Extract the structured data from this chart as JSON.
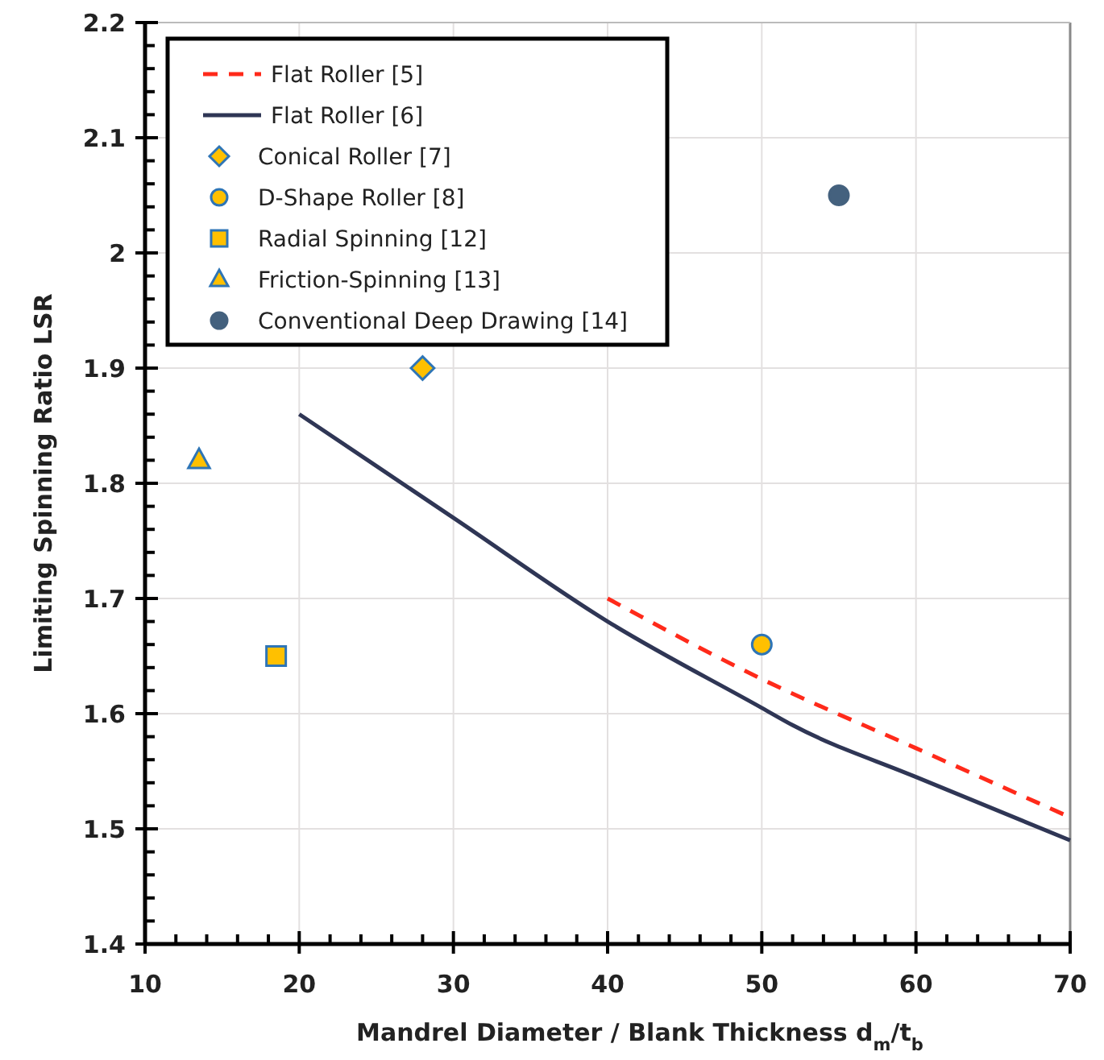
{
  "chart_data": {
    "type": "line",
    "xlabel": "Mandrel Diameter / Blank Thickness    d$_{m}$/t$_{b}$",
    "ylabel": "Limiting Spinning Ratio   LSR",
    "xlim": [
      10,
      70
    ],
    "ylim": [
      1.4,
      2.2
    ],
    "xticks": [
      10,
      {
        "value": 12,
        "label": null
      },
      {
        "value": 14,
        "label": null
      },
      {
        "value": 16,
        "label": null
      },
      {
        "value": 18,
        "label": null
      },
      20,
      {
        "value": 22,
        "label": null
      },
      {
        "value": 24,
        "label": null
      },
      {
        "value": 26,
        "label": null
      },
      {
        "value": 28,
        "label": null
      },
      30,
      {
        "value": 32,
        "label": null
      },
      {
        "value": 34,
        "label": null
      },
      {
        "value": 36,
        "label": null
      },
      {
        "value": 38,
        "label": null
      },
      40,
      {
        "value": 42,
        "label": null
      },
      {
        "value": 44,
        "label": null
      },
      {
        "value": 46,
        "label": null
      },
      {
        "value": 48,
        "label": null
      },
      50,
      {
        "value": 52,
        "label": null
      },
      {
        "value": 54,
        "label": null
      },
      {
        "value": 56,
        "label": null
      },
      {
        "value": 58,
        "label": null
      },
      60,
      {
        "value": 62,
        "label": null
      },
      {
        "value": 64,
        "label": null
      },
      {
        "value": 66,
        "label": null
      },
      {
        "value": 68,
        "label": null
      },
      70
    ],
    "yticks": [
      1.4,
      {
        "value": 1.42,
        "label": null
      },
      {
        "value": 1.44,
        "label": null
      },
      {
        "value": 1.46,
        "label": null
      },
      {
        "value": 1.48,
        "label": null
      },
      1.5,
      {
        "value": 1.52,
        "label": null
      },
      {
        "value": 1.54,
        "label": null
      },
      {
        "value": 1.56,
        "label": null
      },
      {
        "value": 1.58,
        "label": null
      },
      1.6,
      {
        "value": 1.62,
        "label": null
      },
      {
        "value": 1.64,
        "label": null
      },
      {
        "value": 1.66,
        "label": null
      },
      {
        "value": 1.68,
        "label": null
      },
      1.7,
      {
        "value": 1.72,
        "label": null
      },
      {
        "value": 1.74,
        "label": null
      },
      {
        "value": 1.76,
        "label": null
      },
      {
        "value": 1.78,
        "label": null
      },
      1.8,
      {
        "value": 1.82,
        "label": null
      },
      {
        "value": 1.84,
        "label": null
      },
      {
        "value": 1.86,
        "label": null
      },
      {
        "value": 1.88,
        "label": null
      },
      1.9,
      {
        "value": 1.92,
        "label": null
      },
      {
        "value": 1.94,
        "label": null
      },
      {
        "value": 1.96,
        "label": null
      },
      {
        "value": 1.98,
        "label": null
      },
      2,
      {
        "value": 2.02,
        "label": null
      },
      {
        "value": 2.04,
        "label": null
      },
      {
        "value": 2.06,
        "label": null
      },
      {
        "value": 2.08,
        "label": null
      },
      2.1,
      {
        "value": 2.12,
        "label": null
      },
      {
        "value": 2.14,
        "label": null
      },
      {
        "value": 2.16,
        "label": null
      },
      {
        "value": 2.18,
        "label": null
      },
      2.2
    ],
    "grid": true,
    "legend": "top left",
    "series": [
      {
        "name": "Flat Roller  [5]",
        "line_style": "dashed",
        "marker": "none",
        "color": "#ff2a1a",
        "x": [
          40,
          50,
          60,
          70
        ],
        "values": [
          1.7,
          1.63,
          1.57,
          1.51
        ]
      },
      {
        "name": "Flat Roller  [6]",
        "line_style": "solid",
        "marker": "none",
        "color": "#2f3655",
        "x": [
          20,
          30,
          40,
          50,
          52,
          60,
          70
        ],
        "values": [
          1.86,
          1.77,
          1.68,
          1.605,
          1.59,
          1.545,
          1.49
        ]
      },
      {
        "name": "Conical Roller  [7]",
        "type": "scatter",
        "marker": "diamond",
        "color": "#ffc000",
        "x": [
          28
        ],
        "values": [
          1.9
        ]
      },
      {
        "name": "D-Shape Roller  [8]",
        "type": "scatter",
        "marker": "circle",
        "color": "#ffc000",
        "x": [
          50
        ],
        "values": [
          1.66
        ]
      },
      {
        "name": "Radial Spinning  [12]",
        "type": "scatter",
        "marker": "square",
        "color": "#ffc000",
        "x": [
          18.5
        ],
        "values": [
          1.65
        ]
      },
      {
        "name": "Friction-Spinning [13]",
        "type": "scatter",
        "marker": "triangle",
        "color": "#ffc000",
        "x": [
          13.5
        ],
        "values": [
          1.82
        ]
      },
      {
        "name": "Conventional Deep Drawing [14]",
        "type": "scatter",
        "marker": "circle",
        "color": "#44617e",
        "x": [
          55
        ],
        "values": [
          2.05
        ]
      }
    ]
  }
}
